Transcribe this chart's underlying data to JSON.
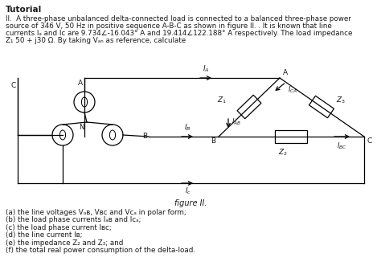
{
  "title": "Tutorial",
  "para_line1": "II.  A three-phase unbalanced delta-connected load is connected to a balanced three-phase power",
  "para_line2": "source of 346 V, 50 Hz in positive sequence A-B-C as shown in figure II. . It is known that line",
  "para_line3": "currents Iₐ and Ic are 9.734∠-16.043° A and 19.414∠122.188° A respectively. The load impedance",
  "para_line4": "Z₁ 50 + j30 Ω. By taking Vₐₙ as reference, calculate",
  "figure_label": "figure II.",
  "q_a": "(a) the line voltages Vₐʙ, Vʙᴄ and Vᴄₐ in polar form;",
  "q_b": "(b) the load phase currents Iₐʙ and Iᴄₐ;",
  "q_c": "(c) the load phase current Iʙᴄ;",
  "q_d": "(d) the line current Iʙ;",
  "q_e": "(e) the impedance Z₂ and Z₃; and",
  "q_f": "(f) the total real power consumption of the delta-load.",
  "text_color": "#1a1a1a",
  "line_color": "#000000"
}
